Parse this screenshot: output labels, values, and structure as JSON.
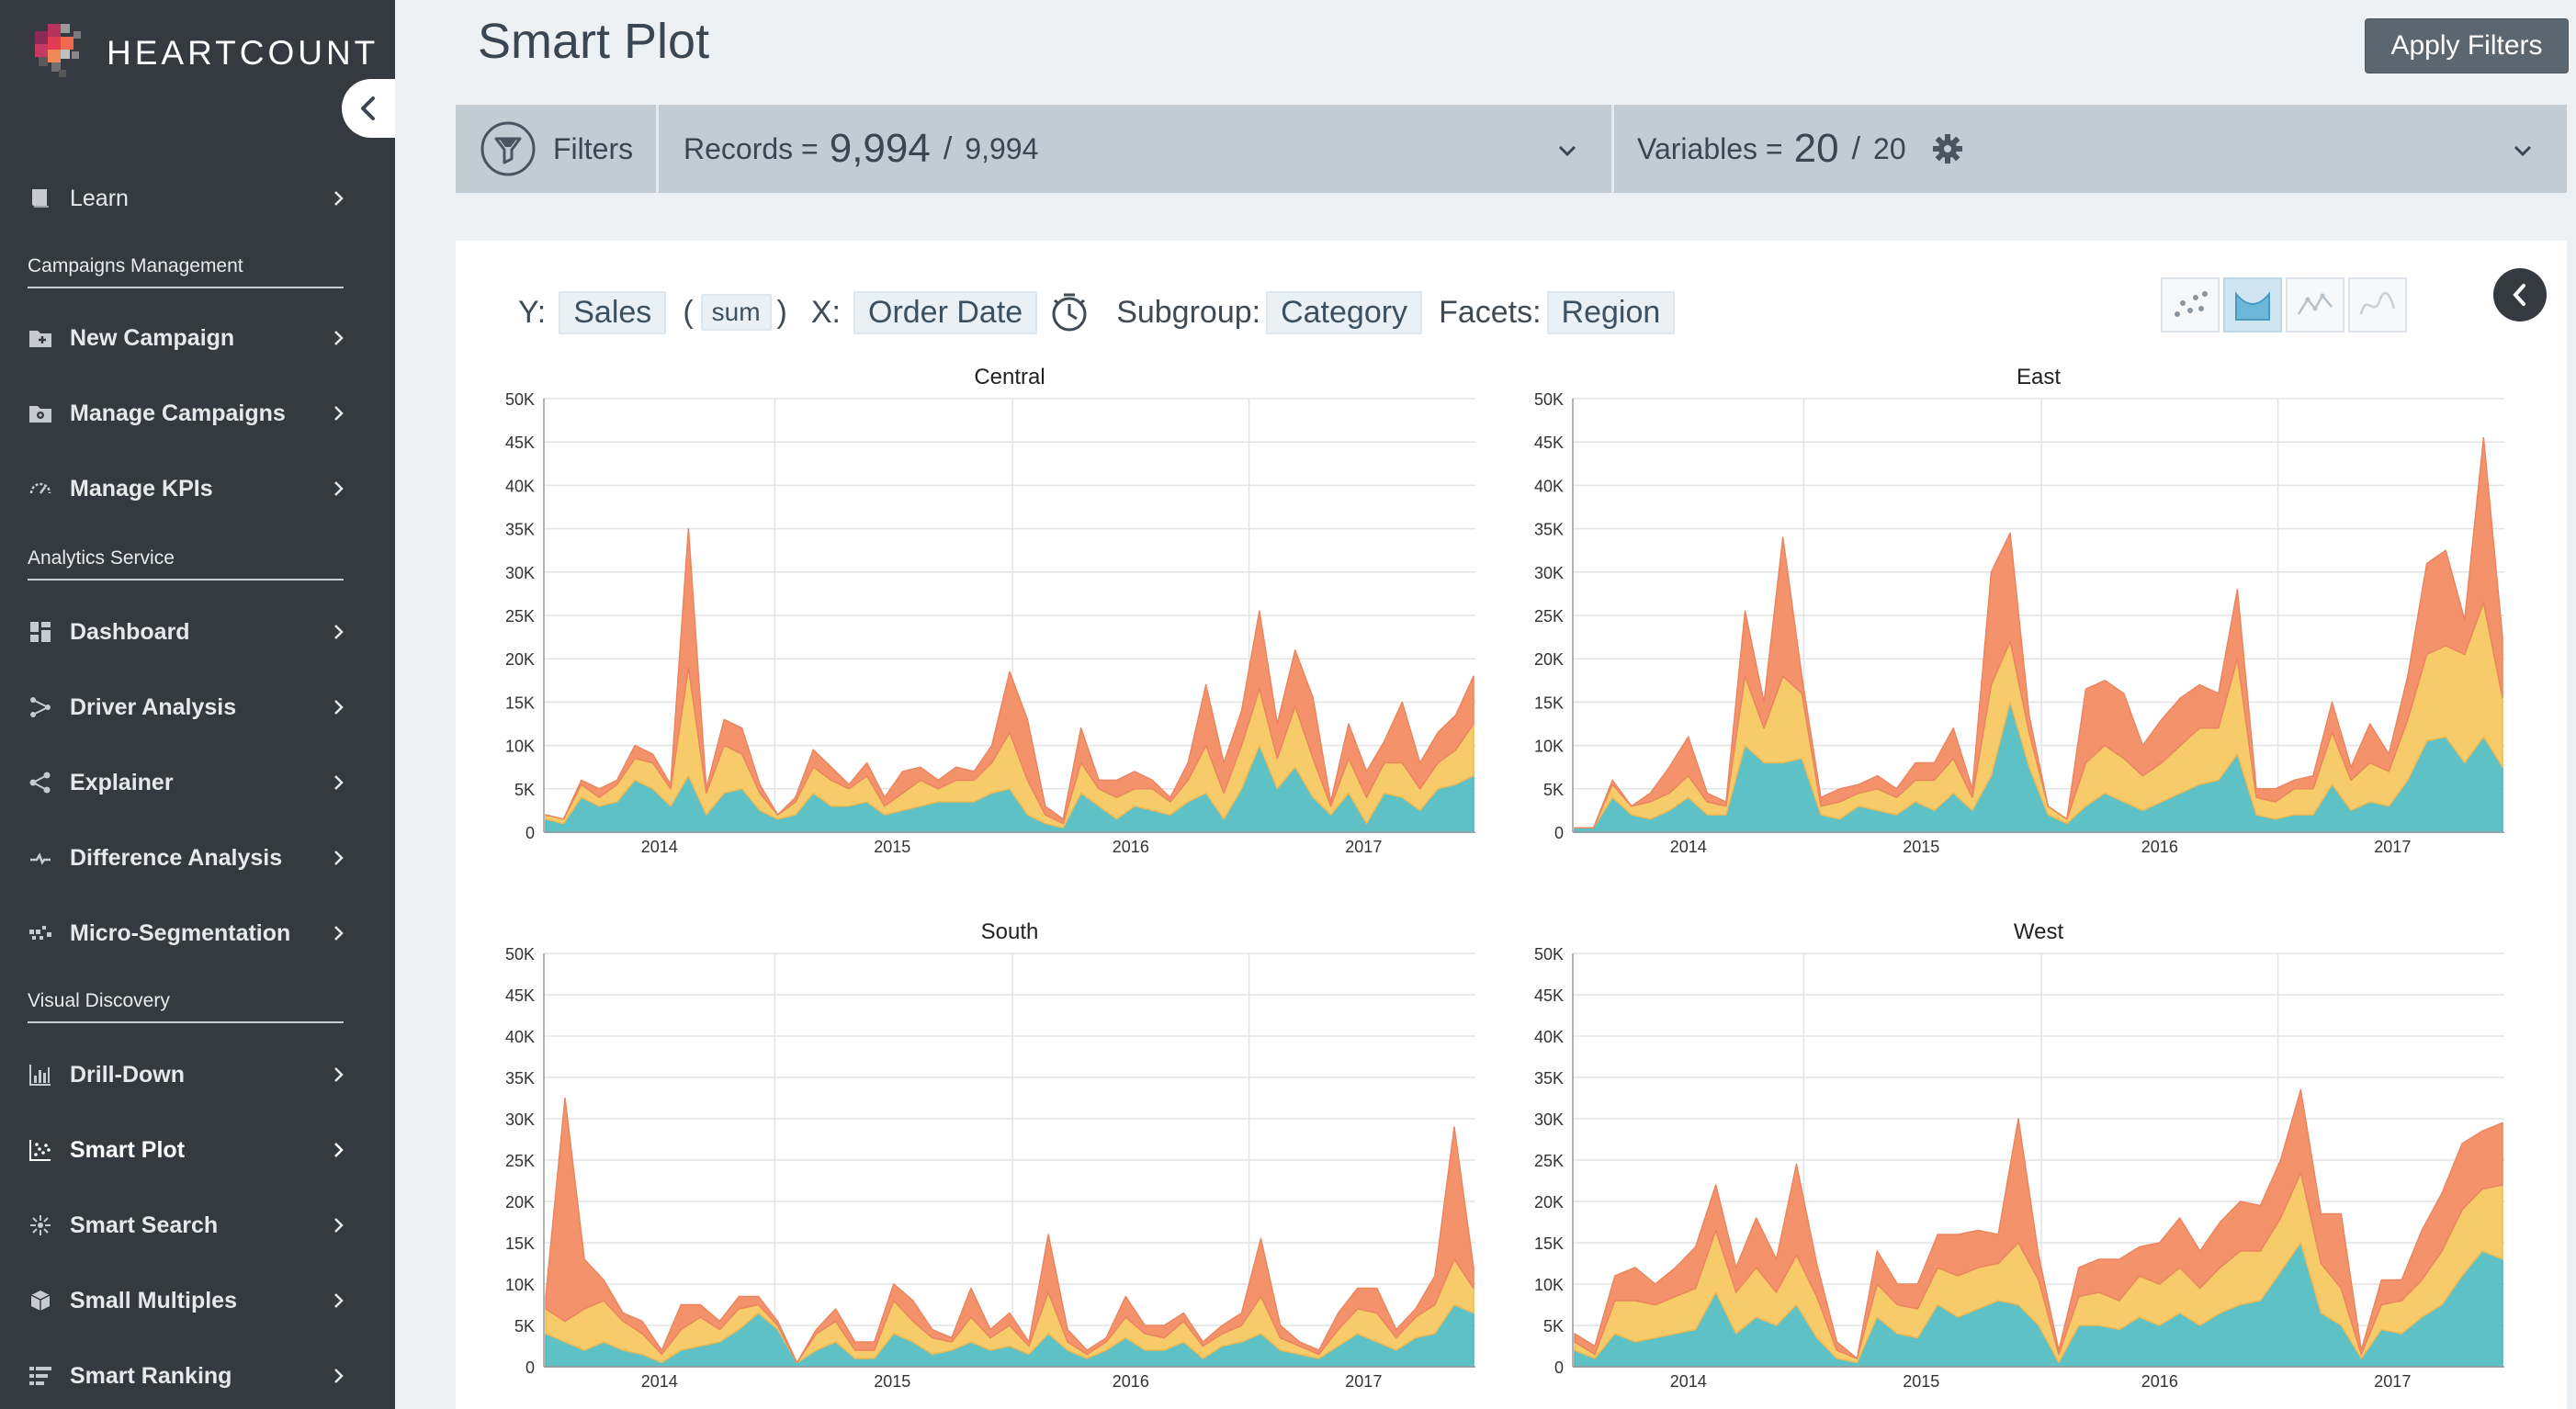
{
  "app": {
    "brand": "HEARTCOUNT"
  },
  "sidebar": {
    "sections": [
      "Campaigns Management",
      "Analytics Service",
      "Visual Discovery"
    ],
    "items": [
      {
        "label": "Learn",
        "icon": "book-icon",
        "active": false
      },
      {
        "label": "New Campaign",
        "icon": "folder-plus-icon",
        "active": false
      },
      {
        "label": "Manage Campaigns",
        "icon": "folder-gear-icon",
        "active": false
      },
      {
        "label": "Manage KPIs",
        "icon": "gauge-icon",
        "active": false
      },
      {
        "label": "Dashboard",
        "icon": "dashboard-icon",
        "active": false
      },
      {
        "label": "Driver Analysis",
        "icon": "driver-icon",
        "active": false
      },
      {
        "label": "Explainer",
        "icon": "share-icon",
        "active": false
      },
      {
        "label": "Difference Analysis",
        "icon": "difference-icon",
        "active": false
      },
      {
        "label": "Micro-Segmentation",
        "icon": "segments-icon",
        "active": false
      },
      {
        "label": "Drill-Down",
        "icon": "bar-chart-icon",
        "active": false
      },
      {
        "label": "Smart Plot",
        "icon": "scatter-plot-icon",
        "active": true
      },
      {
        "label": "Smart Search",
        "icon": "network-icon",
        "active": false
      },
      {
        "label": "Small Multiples",
        "icon": "cube-icon",
        "active": false
      },
      {
        "label": "Smart Ranking",
        "icon": "ranking-icon",
        "active": false
      }
    ]
  },
  "header": {
    "title": "Smart Plot",
    "apply_label": "Apply Filters"
  },
  "filter_bar": {
    "filters_label": "Filters",
    "records_label": "Records =",
    "records_selected": "9,994",
    "records_total": "9,994",
    "variables_label": "Variables =",
    "variables_selected": "20",
    "variables_total": "20"
  },
  "config": {
    "y_label": "Y:",
    "y_value": "Sales",
    "agg_open": "(",
    "agg": "sum",
    "agg_close": ")",
    "x_label": "X:",
    "x_value": "Order Date",
    "subgroup_label": "Subgroup:",
    "subgroup_value": "Category",
    "facets_label": "Facets:",
    "facets_value": "Region"
  },
  "colors": {
    "Technology": "#f4936b",
    "Office Supplies": "#f7ca6a",
    "Furniture": "#5ec1c5",
    "sidebar_bg": "#343a40"
  },
  "chart_data": {
    "type": "area",
    "subtype": "stacked",
    "x_tick_labels": [
      "2014",
      "2015",
      "2016",
      "2017"
    ],
    "y_ticks": [
      "0",
      "5K",
      "10K",
      "15K",
      "20K",
      "25K",
      "30K",
      "35K",
      "40K",
      "45K",
      "50K"
    ],
    "ylim": [
      0,
      50000
    ],
    "grid": true,
    "facets": [
      {
        "title": "Central",
        "series": [
          {
            "values": [
              1.5,
              1,
              4,
              3,
              3.5,
              6,
              5,
              3,
              6.5,
              2,
              4.5,
              5,
              2.5,
              1.5,
              2,
              4.5,
              3,
              3,
              3.5,
              2,
              2.5,
              3,
              3.5,
              3.5,
              3.5,
              4.5,
              5,
              2,
              1,
              0.5,
              4.5,
              3,
              1.5,
              3,
              2.5,
              2,
              3.5,
              4.5,
              1.5,
              5,
              10,
              5,
              7.5,
              4,
              2,
              4.5,
              1,
              4.5,
              4,
              2.5,
              5,
              5.5,
              6.5
            ]
          },
          {
            "values": [
              0.5,
              0.5,
              1.5,
              1,
              2,
              2.5,
              3,
              2,
              12.5,
              2.5,
              5.5,
              4,
              2,
              0.5,
              1.5,
              3,
              3,
              2,
              3,
              1,
              2,
              3,
              1.5,
              2.5,
              2.5,
              3.5,
              6.5,
              4,
              1,
              0.5,
              3.5,
              2,
              2.5,
              2,
              2.5,
              1.5,
              2.5,
              5.5,
              3,
              5,
              6.5,
              3.5,
              7,
              4.5,
              1,
              4,
              3,
              3.5,
              4,
              2.5,
              3,
              4,
              6
            ]
          },
          {
            "values": [
              0,
              0,
              0.5,
              1,
              0.5,
              1.5,
              1,
              0.5,
              16,
              0.5,
              3,
              3,
              1,
              0,
              0.5,
              2,
              1.5,
              0.5,
              1.5,
              1,
              2.5,
              1.5,
              1,
              1.5,
              1,
              2,
              7,
              7,
              1,
              0.5,
              4,
              1,
              2,
              2,
              1,
              0.5,
              2,
              7,
              3.5,
              4,
              9,
              4,
              6.5,
              7,
              0.5,
              4,
              3,
              2.5,
              7,
              3,
              3.5,
              4,
              5.5
            ]
          }
        ]
      },
      {
        "title": "East",
        "series": [
          {
            "values": [
              0.5,
              0.5,
              4,
              2,
              1.5,
              2.5,
              4,
              2,
              2,
              10,
              8,
              8,
              8.5,
              2,
              1.5,
              3,
              2.5,
              2,
              3.5,
              2.5,
              4.5,
              2.5,
              6.5,
              15,
              7.5,
              2,
              1,
              3,
              4.5,
              3.5,
              2.5,
              3.5,
              4.5,
              5.5,
              6,
              9,
              2,
              1.5,
              2,
              2,
              5.5,
              2.5,
              3.5,
              3,
              6,
              10.5,
              11,
              8,
              11,
              7.5
            ]
          },
          {
            "values": [
              0,
              0,
              1.5,
              1,
              2,
              2,
              2.5,
              1.5,
              1,
              8,
              4,
              10,
              7.5,
              1,
              2,
              1.5,
              2.5,
              2,
              2.5,
              3.5,
              4,
              1.5,
              10.5,
              7,
              4,
              1,
              0.5,
              5,
              5.5,
              5,
              4,
              4.5,
              5.5,
              6.5,
              6,
              11,
              2,
              2,
              3,
              3,
              6,
              3.5,
              4.5,
              4,
              7,
              10,
              10.5,
              12.5,
              15.5,
              8
            ]
          },
          {
            "values": [
              0,
              0,
              0.5,
              0,
              1,
              3,
              4.5,
              1,
              0.5,
              7.5,
              3,
              16,
              2,
              1,
              1.5,
              1,
              1.5,
              1,
              2,
              2,
              3.5,
              1,
              13,
              12.5,
              2,
              0,
              0,
              8.5,
              7.5,
              7.5,
              3.5,
              5,
              5.5,
              5,
              4,
              8,
              1,
              1.5,
              1,
              1.5,
              3.5,
              1.5,
              4.5,
              2,
              5,
              10.5,
              11,
              4,
              19,
              7
            ]
          }
        ]
      },
      {
        "title": "South",
        "series": [
          {
            "values": [
              4,
              3,
              2,
              3,
              2,
              1.5,
              0.5,
              2,
              2.5,
              3,
              4.5,
              6.5,
              4.5,
              0.5,
              2,
              3,
              1,
              1,
              4,
              3,
              1.5,
              2,
              3,
              2,
              2.5,
              1.5,
              4,
              2,
              1,
              2,
              3.5,
              2,
              2,
              3,
              1,
              2.5,
              3,
              4,
              2,
              1.5,
              1,
              2.5,
              4,
              3,
              2,
              3.5,
              4,
              7.5,
              6.5
            ]
          },
          {
            "values": [
              3,
              2.5,
              5,
              5,
              3.5,
              2.5,
              1,
              2.5,
              3.5,
              1.5,
              2.5,
              1,
              0.5,
              0,
              2,
              2.5,
              1,
              1,
              4,
              2.5,
              2,
              1,
              3,
              1.5,
              2.5,
              1,
              5,
              1,
              0.5,
              1,
              2.5,
              2,
              1.5,
              2.5,
              1.5,
              1.5,
              2,
              4.5,
              1.5,
              1,
              0.5,
              2,
              3,
              3.5,
              1.5,
              2.5,
              3.5,
              5.5,
              3
            ]
          },
          {
            "values": [
              1.5,
              27,
              6,
              2.5,
              1,
              1.5,
              0.5,
              3,
              1.5,
              1,
              1.5,
              1,
              0.5,
              0,
              0.5,
              1.5,
              1,
              1,
              2,
              2.5,
              1,
              0.5,
              3.5,
              1,
              1.5,
              0.5,
              7,
              1.5,
              0.5,
              0.5,
              2.5,
              1,
              1.5,
              1,
              0.5,
              1,
              1.5,
              7,
              1.5,
              0.5,
              0.5,
              2,
              2.5,
              3,
              1,
              1,
              3.5,
              16,
              2.5
            ]
          }
        ]
      },
      {
        "title": "West",
        "series": [
          {
            "values": [
              2,
              1,
              4,
              3,
              3.5,
              4,
              4.5,
              9,
              4,
              6,
              5,
              7.5,
              3.5,
              1,
              0.5,
              6,
              4,
              3.5,
              7.5,
              6,
              7,
              8,
              7.5,
              5,
              0.5,
              5,
              5,
              4.5,
              6,
              5,
              6.5,
              5,
              6.5,
              7.5,
              8,
              11.5,
              15,
              6.5,
              5,
              1,
              4.5,
              4,
              6,
              7.5,
              11,
              14,
              13
            ]
          },
          {
            "values": [
              1,
              0.5,
              4,
              5,
              4,
              4.5,
              5,
              7.5,
              5,
              6,
              4,
              6,
              5,
              1,
              0.5,
              4,
              3.5,
              3.5,
              4.5,
              5,
              5,
              4.5,
              7.5,
              5.5,
              1,
              3.5,
              4,
              3.5,
              5,
              5,
              5.5,
              4.5,
              5.5,
              6.5,
              6,
              6.5,
              8.5,
              6,
              4.5,
              0.5,
              3,
              4,
              4.5,
              6.5,
              8,
              7.5,
              9
            ]
          },
          {
            "values": [
              1,
              1,
              3,
              4,
              2.5,
              3.5,
              5,
              5.5,
              3,
              6,
              4,
              11,
              4,
              1,
              0,
              4,
              2.5,
              3,
              4,
              5,
              4.5,
              3.5,
              15,
              3,
              0.5,
              3.5,
              4,
              5,
              3.5,
              5,
              6,
              4.5,
              5.5,
              6,
              5.5,
              7,
              10,
              6,
              9,
              0.5,
              3,
              2.5,
              6,
              7,
              8,
              7,
              7.5
            ]
          }
        ]
      }
    ]
  }
}
